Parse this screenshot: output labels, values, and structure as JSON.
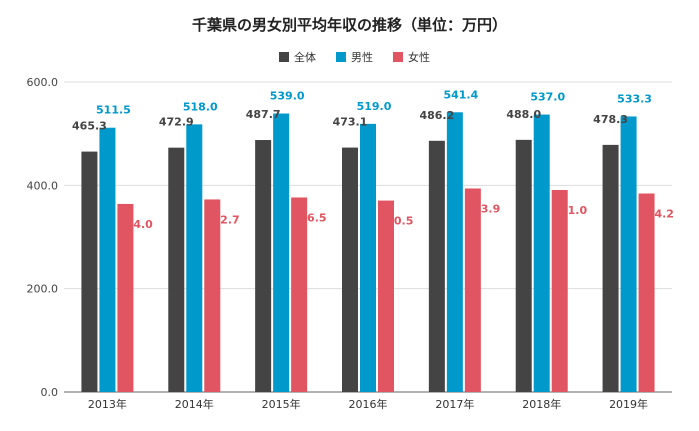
{
  "chart_data": {
    "type": "bar",
    "title": "千葉県の男女別平均年収の推移（単位：万円）",
    "categories": [
      "2013年",
      "2014年",
      "2015年",
      "2016年",
      "2017年",
      "2018年",
      "2019年"
    ],
    "series": [
      {
        "name": "全体",
        "color": "#444444",
        "values": [
          465.3,
          472.9,
          487.7,
          473.1,
          486.2,
          488.0,
          478.3
        ]
      },
      {
        "name": "男性",
        "color": "#0099cc",
        "values": [
          511.5,
          518.0,
          539.0,
          519.0,
          541.4,
          537.0,
          533.3
        ]
      },
      {
        "name": "女性",
        "color": "#e05561",
        "values": [
          364.0,
          372.7,
          376.5,
          370.5,
          393.9,
          391.0,
          384.2
        ]
      }
    ],
    "yticks": [
      "0.0",
      "200.0",
      "400.0",
      "600.0"
    ],
    "ylim": [
      0,
      600
    ],
    "grid": true,
    "legend": "top-center"
  }
}
